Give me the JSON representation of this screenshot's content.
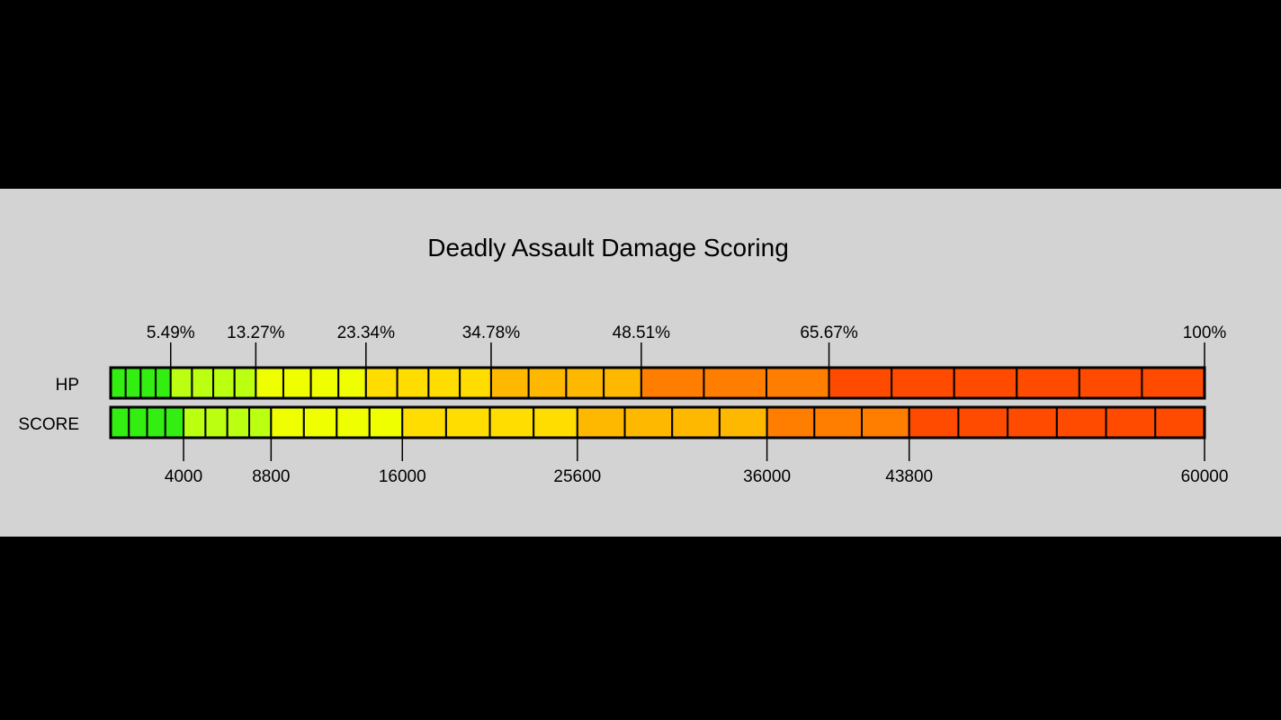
{
  "chart_data": {
    "type": "bar",
    "title": "Deadly Assault Damage Scoring",
    "rows": [
      {
        "label": "HP",
        "markers": [
          "5.49%",
          "13.27%",
          "23.34%",
          "34.78%",
          "48.51%",
          "65.67%",
          "100%"
        ],
        "marker_values": [
          5.49,
          13.27,
          23.34,
          34.78,
          48.51,
          65.67,
          100
        ],
        "segments": [
          {
            "from": 0,
            "to": 5.49,
            "count": 4,
            "color": "#33ee11"
          },
          {
            "from": 5.49,
            "to": 13.27,
            "count": 4,
            "color": "#bbff11"
          },
          {
            "from": 13.27,
            "to": 23.34,
            "count": 4,
            "color": "#f0ff00"
          },
          {
            "from": 23.34,
            "to": 34.78,
            "count": 4,
            "color": "#ffdd00"
          },
          {
            "from": 34.78,
            "to": 48.51,
            "count": 4,
            "color": "#ffb800"
          },
          {
            "from": 48.51,
            "to": 65.67,
            "count": 3,
            "color": "#ff7e00"
          },
          {
            "from": 65.67,
            "to": 100,
            "count": 6,
            "color": "#ff4b00"
          }
        ]
      },
      {
        "label": "SCORE",
        "markers": [
          "4000",
          "8800",
          "16000",
          "25600",
          "36000",
          "43800",
          "60000"
        ],
        "marker_values": [
          4000,
          8800,
          16000,
          25600,
          36000,
          43800,
          60000
        ],
        "segments": [
          {
            "from": 0,
            "to": 4000,
            "count": 4,
            "color": "#33ee11"
          },
          {
            "from": 4000,
            "to": 8800,
            "count": 4,
            "color": "#bbff11"
          },
          {
            "from": 8800,
            "to": 16000,
            "count": 4,
            "color": "#f0ff00"
          },
          {
            "from": 16000,
            "to": 25600,
            "count": 4,
            "color": "#ffdd00"
          },
          {
            "from": 25600,
            "to": 36000,
            "count": 4,
            "color": "#ffb800"
          },
          {
            "from": 36000,
            "to": 43800,
            "count": 3,
            "color": "#ff7e00"
          },
          {
            "from": 43800,
            "to": 60000,
            "count": 6,
            "color": "#ff4b00"
          }
        ]
      }
    ]
  }
}
